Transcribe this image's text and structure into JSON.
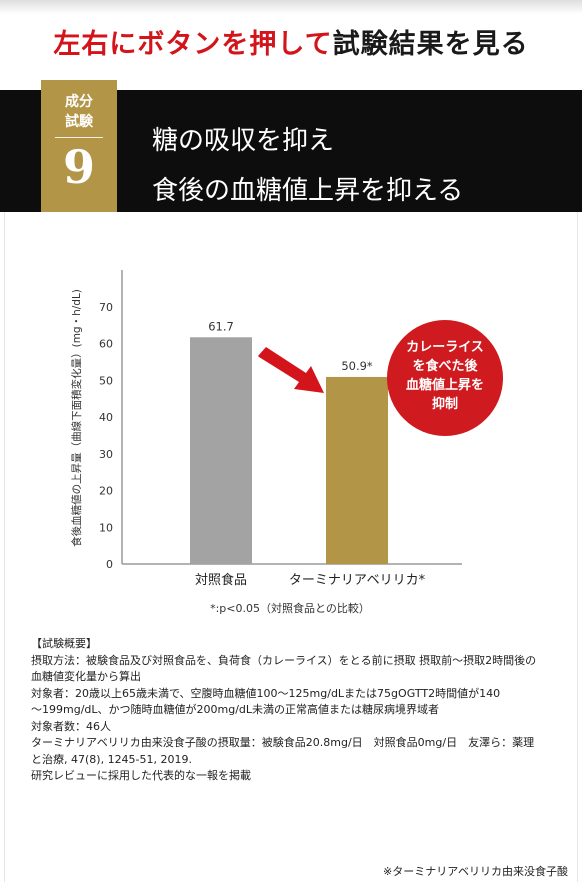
{
  "header": {
    "title_accent": "左右にボタンを押して",
    "title_rest": "試験結果を見る"
  },
  "badge": {
    "label_line1": "成分",
    "label_line2": "試験",
    "number": "9"
  },
  "banner": {
    "line1": "糖の吸収を抑え",
    "line2": "食後の血糖値上昇を抑える"
  },
  "colors": {
    "accent_red": "#d4141b",
    "gold": "#b39548",
    "gray_bar": "#a3a3a3",
    "banner_bg": "#0d0d0d"
  },
  "chart_data": {
    "type": "bar",
    "categories": [
      "対照食品",
      "ターミナリアベリリカ*"
    ],
    "values": [
      61.7,
      50.9
    ],
    "value_labels": [
      "61.7",
      "50.9*"
    ],
    "ylabel": "食後血糖値の上昇量（曲線下面積変化量）(mg・h/dL)",
    "yticks": [
      0,
      10,
      20,
      30,
      40,
      50,
      60,
      70
    ],
    "ylim": [
      0,
      80
    ],
    "note": "*:p<0.05（対照食品との比較）",
    "grid": false
  },
  "callout": {
    "line1": "カレーライス",
    "line2": "を食べた後",
    "line3": "血糖値上昇を",
    "line4": "抑制"
  },
  "summary": {
    "heading": "【試験概要】",
    "line1": "摂取方法：被験食品及び対照食品を、負荷食（カレーライス）をとる前に摂取 摂取前〜摂取2時間後の",
    "line2": "血糖値変化量から算出",
    "line3": "対象者：20歳以上65歳未満で、空腹時血糖値100〜125mg/dLまたは75gOGTT2時間値が140",
    "line4": "〜199mg/dL、かつ随時血糖値が200mg/dL未満の正常高値または糖尿病境界域者",
    "line5": "対象者数：46人",
    "line6": "ターミナリアベリリカ由来没食子酸の摂取量：被験食品20.8mg/日　対照食品0mg/日　友澤ら：薬理",
    "line7": "と治療, 47(8), 1245-51, 2019.",
    "line8": "研究レビューに採用した代表的な一報を掲載"
  },
  "footnote": "※ターミナリアベリリカ由来没食子酸"
}
